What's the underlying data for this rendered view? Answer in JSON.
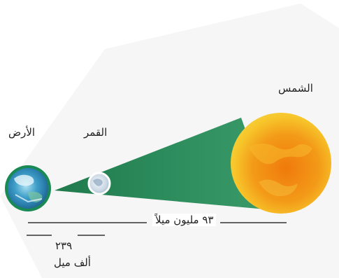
{
  "labels": {
    "sun": "الشمس",
    "moon": "القمر",
    "earth": "الأرض",
    "sun_distance": "٩٣ مليون ميلاً",
    "moon_distance_value": "٢٣٩",
    "moon_distance_unit": "ألف ميل"
  },
  "colors": {
    "cone": "#2e8b5a",
    "cone_inner": "#3aa06c",
    "sun_outer": "#f5c21b",
    "sun_inner": "#f08a12",
    "earth_ring": "#1a8a55",
    "moon": "#dfe7ef",
    "line": "#333333",
    "background_panel": "#f4f4f4"
  }
}
